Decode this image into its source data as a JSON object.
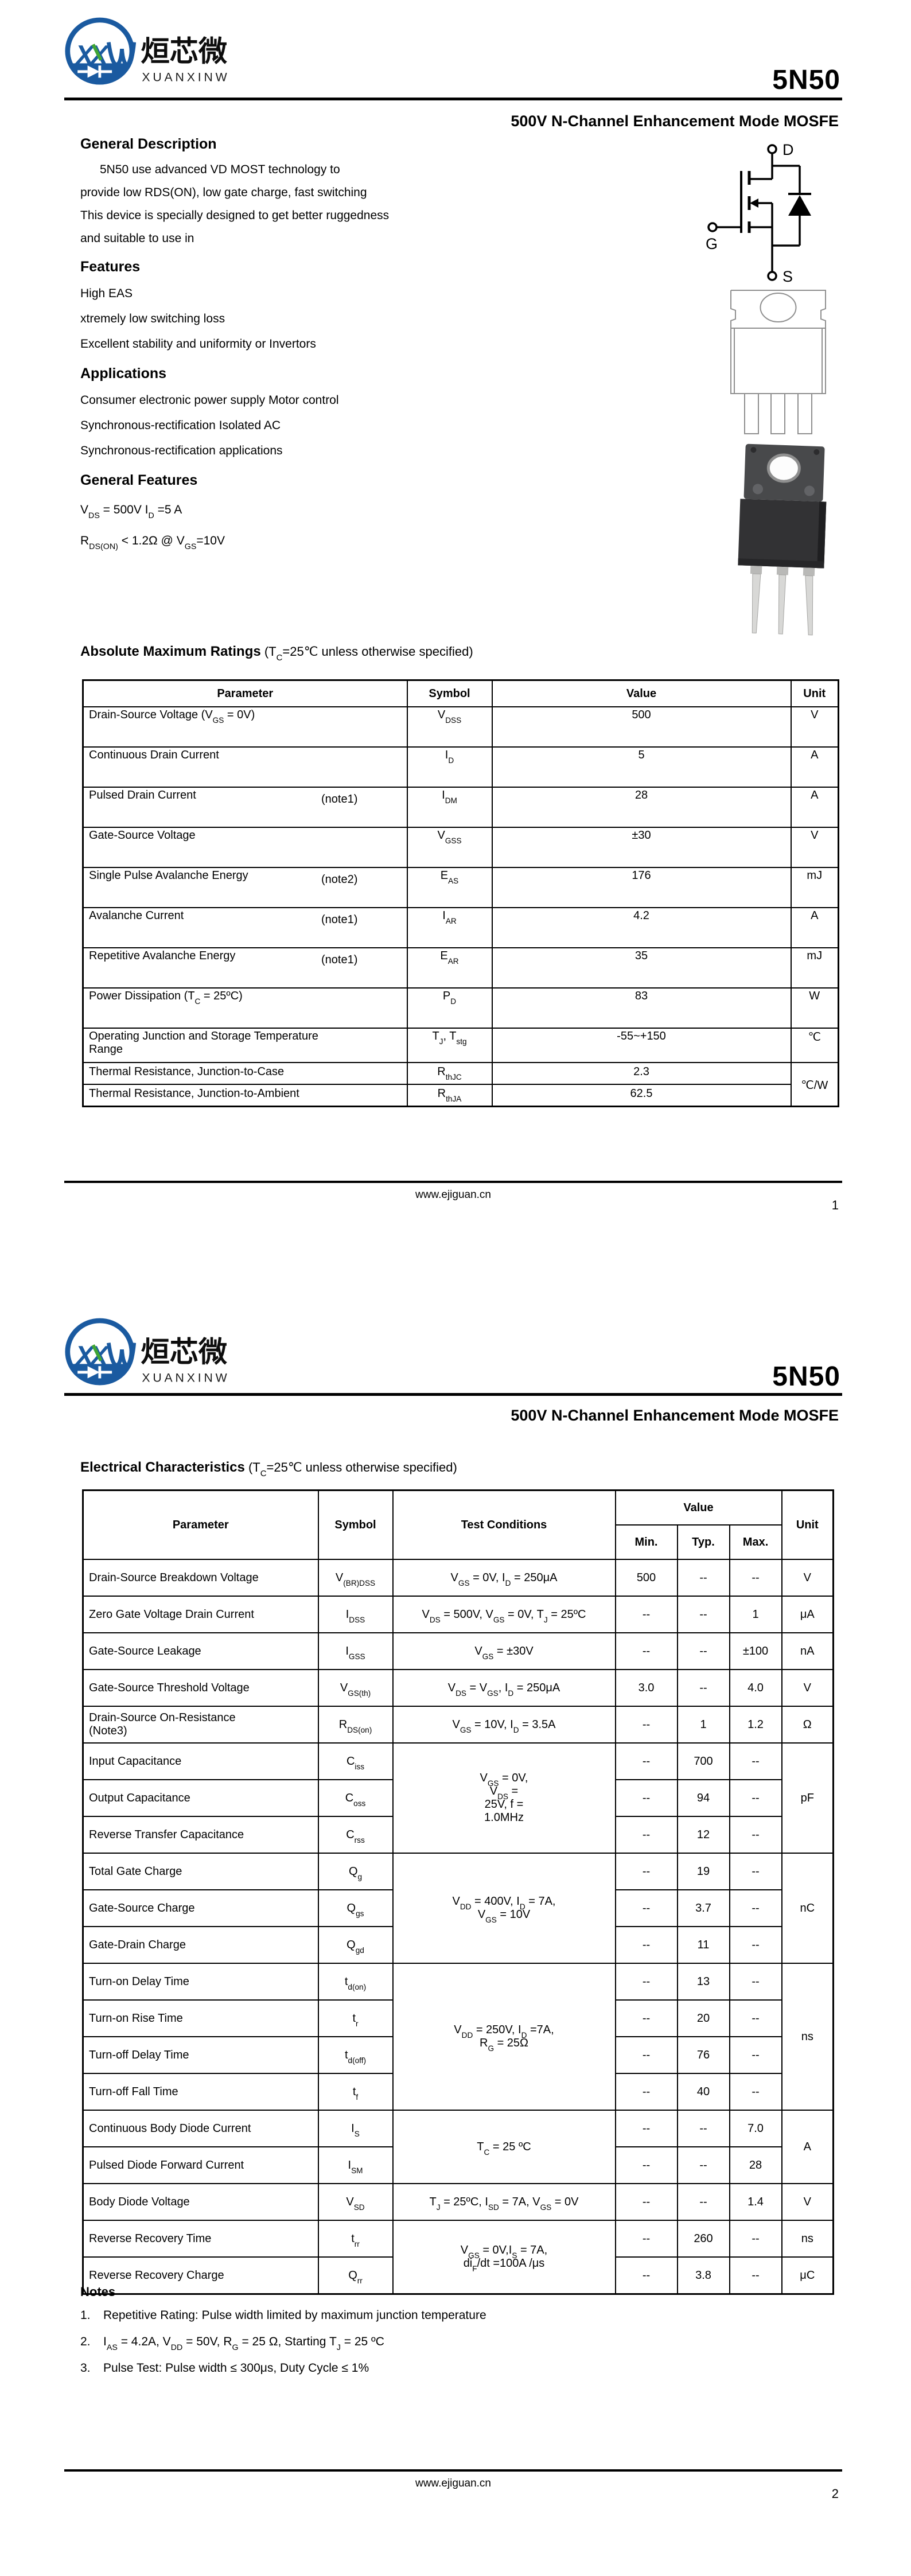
{
  "brand": {
    "mark": "XXW",
    "name_cn": "烜芯微",
    "name_en": "XUANXINWEI"
  },
  "part_number": "5N50",
  "subtitle": "500V N-Channel Enhancement Mode MOSFE",
  "footer": {
    "site": "www.ejiguan.cn",
    "page1": "1",
    "page2": "2"
  },
  "page1": {
    "general_description": {
      "heading": "General Description",
      "lines": [
        "5N50   use advanced VD MOST technology to",
        "provide low RDS(ON), low gate charge, fast  switching",
        "This device is specially designed to get better ruggedness",
        "and suitable to use in"
      ]
    },
    "features": {
      "heading": "Features",
      "items": [
        "High EAS",
        "xtremely low switching loss",
        "Excellent stability and uniformity or Invertors"
      ]
    },
    "applications": {
      "heading": "Applications",
      "items": [
        "Consumer electronic power supply Motor control",
        "Synchronous-rectification Isolated AC",
        "Synchronous-rectification applications"
      ]
    },
    "general_features": {
      "heading": "General Features",
      "items": [
        "V{DS} = 500V  I{D} =5 A",
        "R{DS(ON)} < 1.2Ω @ V{GS}=10V"
      ]
    },
    "symbol_labels": {
      "drain": "D",
      "gate": "G",
      "source": "S"
    },
    "amr": {
      "heading": "Absolute Maximum Ratings",
      "heading_note": " (T{C}=25℃ unless otherwise specified)",
      "headers": {
        "parameter": "Parameter",
        "symbol": "Symbol",
        "value": "Value",
        "unit": "Unit"
      },
      "rows": [
        {
          "param": "Drain-Source Voltage (V{GS} = 0V)",
          "note": "",
          "symbol": "V{DSS}",
          "value": "500",
          "unit": "V"
        },
        {
          "param": "Continuous Drain Current",
          "note": "",
          "symbol": "I{D}",
          "value": "5",
          "unit": "A"
        },
        {
          "param": "Pulsed Drain Current",
          "note": "(note1)",
          "symbol": "I{DM}",
          "value": "28",
          "unit": "A"
        },
        {
          "param": "Gate-Source Voltage",
          "note": "",
          "symbol": "V{GSS}",
          "value": "±30",
          "unit": "V"
        },
        {
          "param": "Single Pulse Avalanche Energy",
          "note": "(note2)",
          "symbol": "E{AS}",
          "value": "176",
          "unit": "mJ"
        },
        {
          "param": "Avalanche Current",
          "note": "(note1)",
          "symbol": "I{AR}",
          "value": "4.2",
          "unit": "A"
        },
        {
          "param": "Repetitive Avalanche Energy",
          "note": "(note1)",
          "symbol": "E{AR}",
          "value": "35",
          "unit": "mJ"
        },
        {
          "param": "Power Dissipation (T{C} = 25ºC)",
          "note": "",
          "symbol": "P{D}",
          "value": "83",
          "unit": "W"
        },
        {
          "param": "Operating Junction and Storage Temperature\nRange",
          "note": "",
          "symbol": "T{J}, T{stg}",
          "value": "-55~+150",
          "unit": "℃"
        },
        {
          "param": "Thermal Resistance, Junction-to-Case",
          "note": "",
          "symbol": "R{thJC}",
          "value": "2.3",
          "unit": "℃/W"
        },
        {
          "param": "Thermal Resistance, Junction-to-Ambient",
          "note": "",
          "symbol": "R{thJA}",
          "value": "62.5"
        }
      ]
    }
  },
  "page2": {
    "ec": {
      "heading": "Electrical Characteristics",
      "heading_note": " (T{C}=25℃ unless otherwise specified)",
      "headers": {
        "parameter": "Parameter",
        "symbol": "Symbol",
        "test": "Test Conditions",
        "value": "Value",
        "min": "Min.",
        "typ": "Typ.",
        "max": "Max.",
        "unit": "Unit"
      },
      "rows": [
        {
          "param": "Drain-Source Breakdown Voltage",
          "symbol": "V{(BR)DSS}",
          "test": "V{GS} = 0V, I{D} = 250μA",
          "min": "500",
          "typ": "--",
          "max": "--",
          "unit": "V"
        },
        {
          "param": "Zero Gate Voltage Drain Current",
          "symbol": "I{DSS}",
          "test": "V{DS} = 500V, V{GS} = 0V, T{J} = 25ºC",
          "min": "--",
          "typ": "--",
          "max": "1",
          "unit": "μA"
        },
        {
          "param": "Gate-Source Leakage",
          "symbol": "I{GSS}",
          "test": "V{GS} = ±30V",
          "min": "--",
          "typ": "--",
          "max": "±100",
          "unit": "nA"
        },
        {
          "param": "Gate-Source Threshold Voltage",
          "symbol": "V{GS(th)}",
          "test": "V{DS} = V{GS}, I{D} =  250μA",
          "min": "3.0",
          "typ": "--",
          "max": "4.0",
          "unit": "V"
        },
        {
          "param": "Drain-Source On-Resistance\n(Note3)",
          "symbol": "R{DS(on)}",
          "test": "V{GS} = 10V, I{D} = 3.5A",
          "min": "--",
          "typ": "1",
          "max": "1.2",
          "unit": "Ω"
        },
        {
          "param": "Input Capacitance",
          "symbol": "C{iss}",
          "test": "V{GS} = 0V,\nV{DS} =\n25V, f =\n1.0MHz",
          "min": "--",
          "typ": "700",
          "max": "--",
          "unit": "pF"
        },
        {
          "param": "Output Capacitance",
          "symbol": "C{oss}",
          "min": "--",
          "typ": "94",
          "max": "--"
        },
        {
          "param": "Reverse Transfer Capacitance",
          "symbol": "C{rss}",
          "min": "--",
          "typ": "12",
          "max": "--"
        },
        {
          "param": "Total Gate Charge",
          "symbol": "Q{g}",
          "test": "V{DD} = 400V, I{D} = 7A,\nV{GS} = 10V",
          "min": "--",
          "typ": "19",
          "max": "--",
          "unit": "nC"
        },
        {
          "param": "Gate-Source Charge",
          "symbol": "Q{gs}",
          "min": "--",
          "typ": "3.7",
          "max": "--"
        },
        {
          "param": "Gate-Drain Charge",
          "symbol": "Q{gd}",
          "min": "--",
          "typ": "11",
          "max": "--"
        },
        {
          "param": "Turn-on Delay Time",
          "symbol": "t{d(on)}",
          "test": "V{DD} = 250V, I{D} =7A,\nR{G} = 25Ω",
          "min": "--",
          "typ": "13",
          "max": "--",
          "unit": "ns"
        },
        {
          "param": "Turn-on Rise Time",
          "symbol": "t{r}",
          "min": "--",
          "typ": "20",
          "max": "--"
        },
        {
          "param": "Turn-off Delay Time",
          "symbol": "t{d(off)}",
          "min": "--",
          "typ": "76",
          "max": "--"
        },
        {
          "param": "Turn-off Fall Time",
          "symbol": "t{f}",
          "min": "--",
          "typ": "40",
          "max": "--"
        },
        {
          "param": "Continuous Body Diode Current",
          "symbol": "I{S}",
          "test": "T{C} = 25 ºC",
          "min": "--",
          "typ": "--",
          "max": "7.0",
          "unit": "A"
        },
        {
          "param": "Pulsed Diode Forward Current",
          "symbol": "I{SM}",
          "min": "--",
          "typ": "--",
          "max": "28"
        },
        {
          "param": "Body Diode Voltage",
          "symbol": "V{SD}",
          "test": "T{J} = 25ºC, I{SD} = 7A, V{GS} = 0V",
          "min": "--",
          "typ": "--",
          "max": "1.4",
          "unit": "V"
        },
        {
          "param": "Reverse Recovery Time",
          "symbol": "t{rr}",
          "test": "V{GS} = 0V,I{S} = 7A,\ndi{F}/dt =100A /μs",
          "min": "--",
          "typ": "260",
          "max": "--",
          "unit": "ns"
        },
        {
          "param": "Reverse Recovery Charge",
          "symbol": "Q{rr}",
          "min": "--",
          "typ": "3.8",
          "max": "--",
          "unit": "μC"
        }
      ]
    },
    "notes": {
      "heading": "Notes",
      "items": [
        {
          "num": "1.",
          "text": "Repetitive Rating: Pulse width limited by maximum junction temperature"
        },
        {
          "num": "2.",
          "text": "I{AS} = 4.2A, V{DD} = 50V, R{G} = 25 Ω, Starting T{J} = 25 ºC"
        },
        {
          "num": "3.",
          "text": "Pulse Test: Pulse width ≤ 300μs, Duty Cycle ≤ 1%"
        }
      ]
    }
  }
}
